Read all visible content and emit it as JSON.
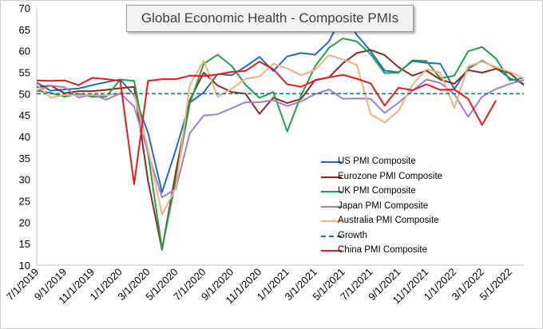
{
  "chart_data": {
    "type": "line",
    "title": "Global Economic Health - Composite PMIs",
    "xlabel": "",
    "ylabel": "",
    "ylim": [
      10,
      70
    ],
    "yticks": [
      10,
      15,
      20,
      25,
      30,
      35,
      40,
      45,
      50,
      55,
      60,
      65,
      70
    ],
    "grid": false,
    "legend_position": "lower-right",
    "x": [
      "7/1/2019",
      "8/1/2019",
      "9/1/2019",
      "10/1/2019",
      "11/1/2019",
      "12/1/2019",
      "1/1/2020",
      "2/1/2020",
      "3/1/2020",
      "4/1/2020",
      "5/1/2020",
      "6/1/2020",
      "7/1/2020",
      "8/1/2020",
      "9/1/2020",
      "10/1/2020",
      "11/1/2020",
      "12/1/2020",
      "1/1/2021",
      "2/1/2021",
      "3/1/2021",
      "4/1/2021",
      "5/1/2021",
      "6/1/2021",
      "7/1/2021",
      "8/1/2021",
      "9/1/2021",
      "10/1/2021",
      "11/1/2021",
      "12/1/2021",
      "1/1/2022",
      "2/1/2022",
      "3/1/2022",
      "4/1/2022",
      "5/1/2022",
      "6/1/2022"
    ],
    "tick_labels": [
      "7/1/2019",
      "9/1/2019",
      "11/1/2019",
      "1/1/2020",
      "3/1/2020",
      "5/1/2020",
      "7/1/2020",
      "9/1/2020",
      "11/1/2020",
      "1/1/2021",
      "3/1/2021",
      "5/1/2021",
      "7/1/2021",
      "9/1/2021",
      "11/1/2021",
      "1/1/2022",
      "3/1/2022",
      "5/1/2022"
    ],
    "series": [
      {
        "name": "US PMI Composite",
        "color": "#1f6fb4",
        "dash": false,
        "values": [
          52.6,
          50.7,
          51.0,
          51.2,
          52.0,
          52.7,
          53.3,
          49.6,
          40.9,
          27.0,
          37.0,
          47.9,
          50.3,
          54.6,
          54.3,
          56.3,
          58.6,
          55.3,
          58.7,
          59.5,
          59.1,
          62.2,
          68.7,
          63.7,
          59.9,
          55.4,
          55.0,
          57.6,
          57.2,
          57.0,
          51.1,
          55.9,
          57.7,
          56.0,
          53.6,
          52.3
        ]
      },
      {
        "name": "Eurozone PMI Composite",
        "color": "#8b2a24",
        "dash": false,
        "values": [
          51.5,
          51.9,
          50.1,
          50.6,
          50.6,
          50.9,
          51.3,
          51.6,
          29.7,
          13.6,
          31.9,
          48.5,
          54.9,
          51.9,
          50.4,
          50.0,
          45.3,
          49.1,
          47.8,
          48.8,
          53.2,
          53.8,
          57.1,
          59.5,
          60.2,
          59.0,
          56.2,
          54.2,
          55.4,
          53.3,
          52.3,
          55.5,
          54.9,
          55.8,
          54.8,
          52.0
        ]
      },
      {
        "name": "UK PMI Composite",
        "color": "#21a04b",
        "dash": false,
        "values": [
          50.7,
          50.2,
          49.3,
          50.0,
          49.3,
          49.3,
          53.3,
          53.0,
          36.0,
          13.8,
          30.0,
          47.7,
          57.0,
          59.1,
          56.5,
          52.1,
          49.0,
          50.4,
          41.2,
          49.6,
          56.4,
          60.7,
          62.9,
          62.2,
          59.2,
          54.8,
          54.9,
          57.8,
          57.6,
          53.6,
          54.2,
          59.9,
          60.9,
          58.2,
          53.1,
          53.7
        ]
      },
      {
        "name": "Japan PMI Composite",
        "color": "#9f7fcf",
        "dash": false,
        "values": [
          50.6,
          51.9,
          51.5,
          49.1,
          49.8,
          48.6,
          50.1,
          47.0,
          36.2,
          25.8,
          27.8,
          40.8,
          44.9,
          45.2,
          46.6,
          48.0,
          48.0,
          48.5,
          47.1,
          48.2,
          49.9,
          51.0,
          48.8,
          48.9,
          48.8,
          45.5,
          47.9,
          50.7,
          53.3,
          52.5,
          49.9,
          44.6,
          49.3,
          51.1,
          52.3,
          53.2
        ]
      },
      {
        "name": "Australia PMI Composite",
        "color": "#f5b07e",
        "dash": false,
        "values": [
          52.1,
          49.1,
          49.7,
          49.6,
          49.8,
          49.6,
          50.2,
          50.0,
          37.1,
          21.7,
          28.1,
          52.0,
          57.7,
          49.3,
          51.1,
          53.5,
          54.0,
          57.0,
          55.9,
          54.3,
          55.6,
          59.0,
          58.0,
          56.7,
          45.2,
          43.3,
          46.0,
          52.1,
          55.7,
          54.9,
          46.7,
          56.4,
          57.5,
          56.2,
          55.1,
          53.6
        ]
      },
      {
        "name": "Growth",
        "color": "#1b7a7a",
        "dash": true,
        "values": [
          50,
          50,
          50,
          50,
          50,
          50,
          50,
          50,
          50,
          50,
          50,
          50,
          50,
          50,
          50,
          50,
          50,
          50,
          50,
          50,
          50,
          50,
          50,
          50,
          50,
          50,
          50,
          50,
          50,
          50,
          50,
          50,
          50,
          50,
          50,
          50
        ]
      },
      {
        "name": "China PMI Composite",
        "color": "#e8191b",
        "dash": false,
        "values": [
          53.1,
          53.0,
          53.1,
          52.0,
          53.7,
          53.4,
          53.0,
          28.9,
          53.0,
          53.4,
          53.4,
          54.2,
          54.1,
          54.5,
          55.1,
          55.3,
          57.5,
          55.7,
          52.2,
          51.6,
          53.1,
          53.8,
          54.4,
          53.5,
          52.4,
          47.2,
          51.4,
          50.8,
          52.2,
          50.9,
          51.0,
          48.8,
          42.7,
          48.4,
          null,
          null
        ]
      }
    ]
  }
}
